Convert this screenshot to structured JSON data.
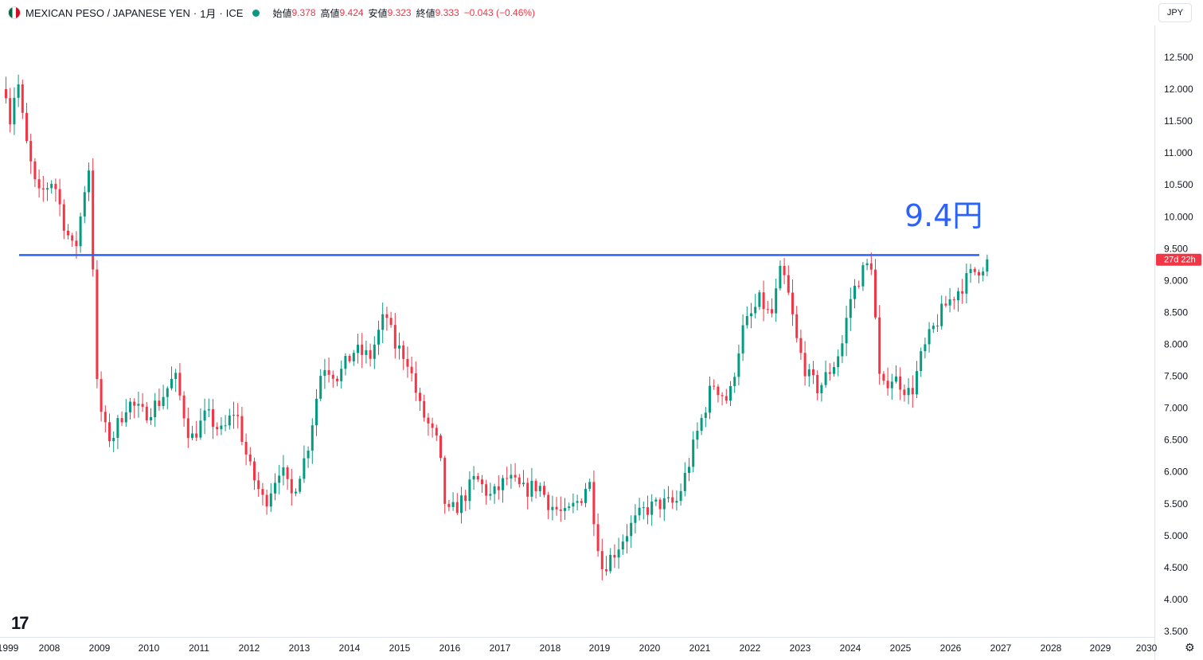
{
  "header": {
    "symbol": "MEXICAN PESO / JAPANESE YEN",
    "interval": "1月",
    "exchange": "ICE",
    "open_label": "始値",
    "open": "9.378",
    "high_label": "高値",
    "high": "9.424",
    "low_label": "安値",
    "low": "9.323",
    "close_label": "終値",
    "close": "9.333",
    "change": "−0.043 (−0.46%)"
  },
  "currency_button": "JPY",
  "countdown": "27d 22h",
  "annotation": "9.4円",
  "logo": "17",
  "colors": {
    "up": "#089981",
    "down": "#f23645",
    "line": "#2962ff",
    "annotation": "#2962ff"
  },
  "icons": {
    "settings": "gear-icon",
    "live": "live-dot-icon",
    "flag": "mexico-flag-icon"
  },
  "chart_data": {
    "type": "candlestick",
    "ylim": [
      3.5,
      12.75
    ],
    "xlim": [
      1999.0,
      2030.0
    ],
    "yticks": [
      "12.500",
      "12.000",
      "11.500",
      "11.000",
      "10.500",
      "10.000",
      "9.500",
      "9.000",
      "8.500",
      "8.000",
      "7.500",
      "7.000",
      "6.500",
      "6.000",
      "5.500",
      "5.000",
      "4.500",
      "4.000",
      "3.500"
    ],
    "xticks": [
      "1999",
      "2008",
      "2009",
      "2010",
      "2011",
      "2012",
      "2013",
      "2014",
      "2015",
      "2016",
      "2017",
      "2018",
      "2019",
      "2020",
      "2021",
      "2022",
      "2023",
      "2024",
      "2025",
      "2026",
      "2027",
      "2028",
      "2029",
      "2030"
    ],
    "last_price": "9.333",
    "horizontal_line": {
      "y": 9.4
    },
    "waypoints": [
      [
        1999.0,
        12.0
      ],
      [
        1999.1,
        11.4
      ],
      [
        1999.2,
        12.3
      ],
      [
        1999.35,
        11.3
      ],
      [
        1999.6,
        10.3
      ],
      [
        1999.9,
        10.6
      ],
      [
        2000.1,
        9.9
      ],
      [
        2000.3,
        9.4
      ],
      [
        2000.45,
        10.2
      ],
      [
        2000.55,
        10.8
      ],
      [
        2000.62,
        10.7
      ],
      [
        2000.68,
        7.6
      ],
      [
        2000.85,
        6.7
      ],
      [
        2001.0,
        6.5
      ],
      [
        2001.3,
        7.1
      ],
      [
        2001.6,
        6.9
      ],
      [
        2001.9,
        7.1
      ],
      [
        2002.2,
        7.5
      ],
      [
        2002.5,
        6.5
      ],
      [
        2002.8,
        6.9
      ],
      [
        2003.1,
        6.6
      ],
      [
        2003.35,
        7.0
      ],
      [
        2003.6,
        6.1
      ],
      [
        2003.9,
        5.5
      ],
      [
        2004.2,
        6.1
      ],
      [
        2004.4,
        5.6
      ],
      [
        2004.7,
        6.3
      ],
      [
        2005.0,
        7.7
      ],
      [
        2005.3,
        7.5
      ],
      [
        2005.6,
        7.9
      ],
      [
        2005.9,
        7.8
      ],
      [
        2006.2,
        8.5
      ],
      [
        2006.35,
        8.0
      ],
      [
        2006.6,
        7.8
      ],
      [
        2006.85,
        7.0
      ],
      [
        2007.2,
        6.4
      ],
      [
        2007.35,
        5.3
      ],
      [
        2007.6,
        5.5
      ],
      [
        2007.9,
        5.9
      ],
      [
        2008.2,
        5.6
      ],
      [
        2008.5,
        5.9
      ],
      [
        2008.8,
        5.7
      ],
      [
        2009.1,
        5.8
      ],
      [
        2009.3,
        5.5
      ],
      [
        2009.6,
        5.3
      ],
      [
        2009.9,
        5.6
      ],
      [
        2010.05,
        5.9
      ],
      [
        2010.18,
        5.1
      ],
      [
        2010.3,
        4.5
      ],
      [
        2010.5,
        4.7
      ],
      [
        2010.8,
        5.1
      ],
      [
        2011.1,
        5.4
      ],
      [
        2011.4,
        5.5
      ],
      [
        2011.7,
        5.5
      ],
      [
        2011.9,
        6.0
      ],
      [
        2012.1,
        6.6
      ],
      [
        2012.4,
        7.4
      ],
      [
        2012.7,
        7.1
      ],
      [
        2012.95,
        8.2
      ],
      [
        2013.3,
        8.7
      ],
      [
        2013.5,
        8.4
      ],
      [
        2013.7,
        9.2
      ],
      [
        2013.85,
        8.7
      ],
      [
        2014.0,
        8.0
      ],
      [
        2014.2,
        7.5
      ],
      [
        2014.4,
        7.3
      ],
      [
        2014.7,
        7.7
      ],
      [
        2014.85,
        8.0
      ],
      [
        2015.0,
        8.7
      ],
      [
        2015.2,
        9.1
      ],
      [
        2015.4,
        9.3
      ],
      [
        2015.48,
        8.4
      ],
      [
        2015.58,
        7.2
      ],
      [
        2015.75,
        7.5
      ],
      [
        2015.95,
        7.4
      ],
      [
        2016.15,
        7.2
      ],
      [
        2016.35,
        7.8
      ],
      [
        2016.55,
        8.2
      ],
      [
        2016.8,
        8.6
      ],
      [
        2017.0,
        8.8
      ],
      [
        2017.3,
        9.1
      ],
      [
        2017.6,
        9.3
      ]
    ]
  }
}
